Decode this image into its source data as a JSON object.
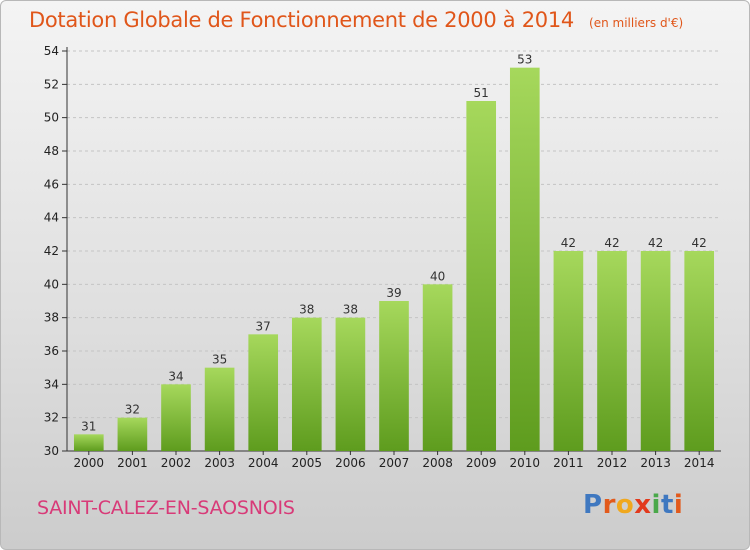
{
  "title": "Dotation Globale de Fonctionnement de 2000 à 2014",
  "subtitle": "(en milliers d'€)",
  "commune": "SAINT-CALEZ-EN-SAOSNOIS",
  "logo": {
    "letters": [
      "P",
      "r",
      "o",
      "x",
      "i",
      "t",
      "i"
    ],
    "colors": [
      "#3f78c0",
      "#e25a1c",
      "#f0a81e",
      "#e2391c",
      "#4aa84a",
      "#3f78c0",
      "#e25a1c"
    ]
  },
  "colors": {
    "title": "#e0561a",
    "commune": "#d83a78",
    "bar_top": "#a6d85c",
    "bar_bottom": "#5e9c1e",
    "axis": "#333333",
    "grid": "#c4c4c4"
  },
  "chart_data": {
    "type": "bar",
    "title": "Dotation Globale de Fonctionnement de 2000 à 2014",
    "subtitle": "(en milliers d'€)",
    "categories": [
      "2000",
      "2001",
      "2002",
      "2003",
      "2004",
      "2005",
      "2006",
      "2007",
      "2008",
      "2009",
      "2010",
      "2011",
      "2012",
      "2013",
      "2014"
    ],
    "values": [
      31,
      32,
      34,
      35,
      37,
      38,
      38,
      39,
      40,
      51,
      53,
      42,
      42,
      42,
      42
    ],
    "yticks": [
      30,
      32,
      34,
      36,
      38,
      40,
      42,
      44,
      46,
      48,
      50,
      52,
      54
    ],
    "ylim": [
      30,
      54
    ],
    "xlabel": "",
    "ylabel": "",
    "grid": true,
    "data_labels": true
  }
}
